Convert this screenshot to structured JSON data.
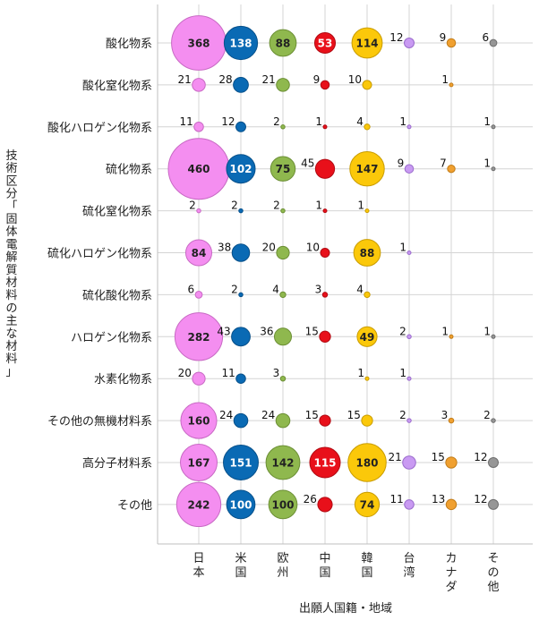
{
  "chart_data": {
    "type": "bubble",
    "title": "",
    "xlabel": "出願人国籍・地域",
    "ylabel": "技術区分「固体電解質材料の主な材料」",
    "columns": [
      {
        "label": "日本",
        "color": "#f48ef0",
        "stroke": "#c86ac4"
      },
      {
        "label": "米国",
        "color": "#0a6ab4",
        "stroke": "#07508a"
      },
      {
        "label": "欧州",
        "color": "#8fb84e",
        "stroke": "#6c8f35"
      },
      {
        "label": "中国",
        "color": "#e8101a",
        "stroke": "#b00a12"
      },
      {
        "label": "韓国",
        "color": "#fbc80a",
        "stroke": "#c99c00"
      },
      {
        "label": "台湾",
        "color": "#c99af2",
        "stroke": "#9a6ccc"
      },
      {
        "label": "カナダ",
        "color": "#f0a030",
        "stroke": "#c27c18"
      },
      {
        "label": "その他",
        "color": "#969696",
        "stroke": "#6e6e6e"
      }
    ],
    "rows": [
      {
        "label": "酸化物系",
        "values": [
          368,
          138,
          88,
          53,
          114,
          12,
          9,
          6
        ]
      },
      {
        "label": "酸化窒化物系",
        "values": [
          21,
          28,
          21,
          9,
          10,
          null,
          1,
          null
        ]
      },
      {
        "label": "酸化ハロゲン化物系",
        "values": [
          11,
          12,
          2,
          1,
          4,
          1,
          null,
          1
        ]
      },
      {
        "label": "硫化物系",
        "values": [
          460,
          102,
          75,
          45,
          147,
          9,
          7,
          1
        ]
      },
      {
        "label": "硫化窒化物系",
        "values": [
          2,
          2,
          2,
          1,
          1,
          null,
          null,
          null
        ]
      },
      {
        "label": "硫化ハロゲン化物系",
        "values": [
          84,
          38,
          20,
          10,
          88,
          1,
          null,
          null
        ]
      },
      {
        "label": "硫化酸化物系",
        "values": [
          6,
          2,
          4,
          3,
          4,
          null,
          null,
          null
        ]
      },
      {
        "label": "ハロゲン化物系",
        "values": [
          282,
          43,
          36,
          15,
          49,
          2,
          1,
          1
        ]
      },
      {
        "label": "水素化物系",
        "values": [
          20,
          11,
          3,
          null,
          1,
          1,
          null,
          null
        ]
      },
      {
        "label": "その他の無機材料系",
        "values": [
          160,
          24,
          24,
          15,
          15,
          2,
          3,
          2
        ]
      },
      {
        "label": "高分子材料系",
        "values": [
          167,
          151,
          142,
          115,
          180,
          21,
          15,
          12
        ]
      },
      {
        "label": "その他",
        "values": [
          242,
          100,
          100,
          26,
          74,
          11,
          13,
          12
        ]
      }
    ],
    "grid": true
  }
}
